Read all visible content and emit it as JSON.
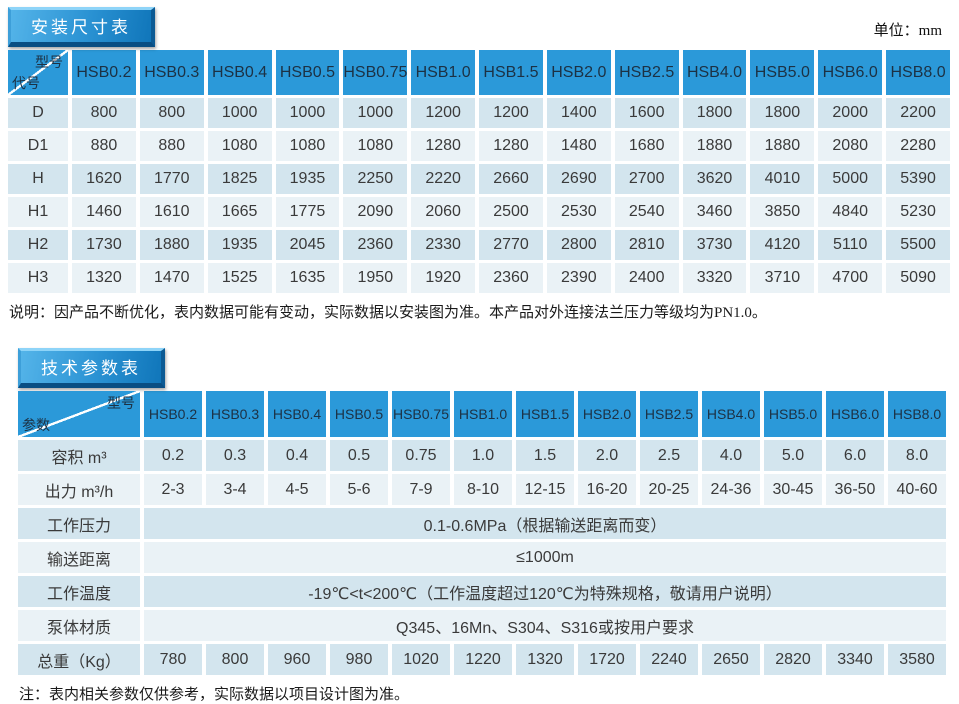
{
  "page": {
    "unit_label": "单位：mm"
  },
  "colors": {
    "header_blue": "#2b99d9",
    "header_text": "#1c3144",
    "row_dark": "#d3e5ee",
    "row_light": "#eaf2f6",
    "button_face_light": "#54b4e9",
    "button_face_dark": "#1076ba"
  },
  "dim_table": {
    "title": "安装尺寸表",
    "corner_top": "型号",
    "corner_bottom": "代号",
    "columns": [
      "HSB0.2",
      "HSB0.3",
      "HSB0.4",
      "HSB0.5",
      "HSB0.75",
      "HSB1.0",
      "HSB1.5",
      "HSB2.0",
      "HSB2.5",
      "HSB4.0",
      "HSB5.0",
      "HSB6.0",
      "HSB8.0"
    ],
    "rows": [
      {
        "label": "D",
        "values": [
          "800",
          "800",
          "1000",
          "1000",
          "1000",
          "1200",
          "1200",
          "1400",
          "1600",
          "1800",
          "1800",
          "2000",
          "2200"
        ]
      },
      {
        "label": "D1",
        "values": [
          "880",
          "880",
          "1080",
          "1080",
          "1080",
          "1280",
          "1280",
          "1480",
          "1680",
          "1880",
          "1880",
          "2080",
          "2280"
        ]
      },
      {
        "label": "H",
        "values": [
          "1620",
          "1770",
          "1825",
          "1935",
          "2250",
          "2220",
          "2660",
          "2690",
          "2700",
          "3620",
          "4010",
          "5000",
          "5390"
        ]
      },
      {
        "label": "H1",
        "values": [
          "1460",
          "1610",
          "1665",
          "1775",
          "2090",
          "2060",
          "2500",
          "2530",
          "2540",
          "3460",
          "3850",
          "4840",
          "5230"
        ]
      },
      {
        "label": "H2",
        "values": [
          "1730",
          "1880",
          "1935",
          "2045",
          "2360",
          "2330",
          "2770",
          "2800",
          "2810",
          "3730",
          "4120",
          "5110",
          "5500"
        ]
      },
      {
        "label": "H3",
        "values": [
          "1320",
          "1470",
          "1525",
          "1635",
          "1950",
          "1920",
          "2360",
          "2390",
          "2400",
          "3320",
          "3710",
          "4700",
          "5090"
        ]
      }
    ],
    "note": "说明：因产品不断优化，表内数据可能有变动，实际数据以安装图为准。本产品对外连接法兰压力等级均为PN1.0。"
  },
  "param_table": {
    "title": "技术参数表",
    "corner_top": "型号",
    "corner_bottom": "参数",
    "columns": [
      "HSB0.2",
      "HSB0.3",
      "HSB0.4",
      "HSB0.5",
      "HSB0.75",
      "HSB1.0",
      "HSB1.5",
      "HSB2.0",
      "HSB2.5",
      "HSB4.0",
      "HSB5.0",
      "HSB6.0",
      "HSB8.0"
    ],
    "rows": [
      {
        "label": "容积 m³",
        "values": [
          "0.2",
          "0.3",
          "0.4",
          "0.5",
          "0.75",
          "1.0",
          "1.5",
          "2.0",
          "2.5",
          "4.0",
          "5.0",
          "6.0",
          "8.0"
        ]
      },
      {
        "label": "出力 m³/h",
        "values": [
          "2-3",
          "3-4",
          "4-5",
          "5-6",
          "7-9",
          "8-10",
          "12-15",
          "16-20",
          "20-25",
          "24-36",
          "30-45",
          "36-50",
          "40-60"
        ]
      },
      {
        "label": "工作压力",
        "merged": "0.1-0.6MPa（根据输送距离而变）"
      },
      {
        "label": "输送距离",
        "merged": "≤1000m"
      },
      {
        "label": "工作温度",
        "merged": "-19℃<t<200℃（工作温度超过120℃为特殊规格，敬请用户说明）"
      },
      {
        "label": "泵体材质",
        "merged": "Q345、16Mn、S304、S316或按用户要求"
      },
      {
        "label": "总重（Kg）",
        "values": [
          "780",
          "800",
          "960",
          "980",
          "1020",
          "1220",
          "1320",
          "1720",
          "2240",
          "2650",
          "2820",
          "3340",
          "3580"
        ]
      }
    ],
    "note": "注：表内相关参数仅供参考，实际数据以项目设计图为准。"
  }
}
